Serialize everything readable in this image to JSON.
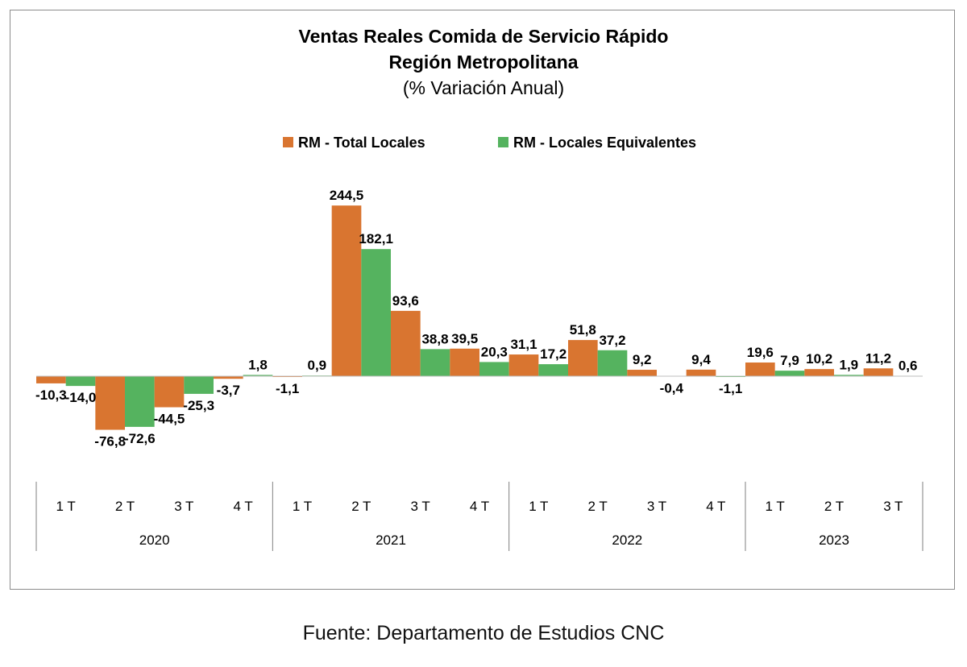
{
  "source_note": "Fuente: Departamento de Estudios CNC",
  "colors": {
    "total": "#D97530",
    "equiv": "#55B35F",
    "axis": "#7f7f7f"
  },
  "chart_data": {
    "type": "bar",
    "title": "Ventas Reales Comida de Servicio Rápido",
    "subtitle": "Región Metropolitana",
    "subtitle2": "(% Variación Anual)",
    "legend_position": "top",
    "grid": false,
    "ylim": [
      -90,
      265
    ],
    "categories": [
      {
        "quarter": "1 T",
        "year": "2020"
      },
      {
        "quarter": "2 T",
        "year": "2020"
      },
      {
        "quarter": "3 T",
        "year": "2020"
      },
      {
        "quarter": "4 T",
        "year": "2020"
      },
      {
        "quarter": "1 T",
        "year": "2021"
      },
      {
        "quarter": "2 T",
        "year": "2021"
      },
      {
        "quarter": "3 T",
        "year": "2021"
      },
      {
        "quarter": "4 T",
        "year": "2021"
      },
      {
        "quarter": "1 T",
        "year": "2022"
      },
      {
        "quarter": "2 T",
        "year": "2022"
      },
      {
        "quarter": "3 T",
        "year": "2022"
      },
      {
        "quarter": "4 T",
        "year": "2022"
      },
      {
        "quarter": "1 T",
        "year": "2023"
      },
      {
        "quarter": "2 T",
        "year": "2023"
      },
      {
        "quarter": "3 T",
        "year": "2023"
      }
    ],
    "years": [
      "2020",
      "2021",
      "2022",
      "2023"
    ],
    "series": [
      {
        "name": "RM - Total Locales",
        "values": [
          -10.3,
          -76.8,
          -44.5,
          -3.7,
          -1.1,
          244.5,
          93.6,
          39.5,
          31.1,
          51.8,
          9.2,
          9.4,
          19.6,
          10.2,
          11.2
        ],
        "labels": [
          "-10,3",
          "-76,8",
          "-44,5",
          "-3,7",
          "-1,1",
          "244,5",
          "93,6",
          "39,5",
          "31,1",
          "51,8",
          "9,2",
          "9,4",
          "19,6",
          "10,2",
          "11,2"
        ]
      },
      {
        "name": "RM - Locales Equivalentes",
        "values": [
          -14.0,
          -72.6,
          -25.3,
          1.8,
          0.9,
          182.1,
          38.8,
          20.3,
          17.2,
          37.2,
          -0.4,
          -1.1,
          7.9,
          1.9,
          0.6
        ],
        "labels": [
          "-14,0",
          "-72,6",
          "-25,3",
          "1,8",
          "0,9",
          "182,1",
          "38,8",
          "20,3",
          "17,2",
          "37,2",
          "-0,4",
          "-1,1",
          "7,9",
          "1,9",
          "0,6"
        ]
      }
    ]
  }
}
